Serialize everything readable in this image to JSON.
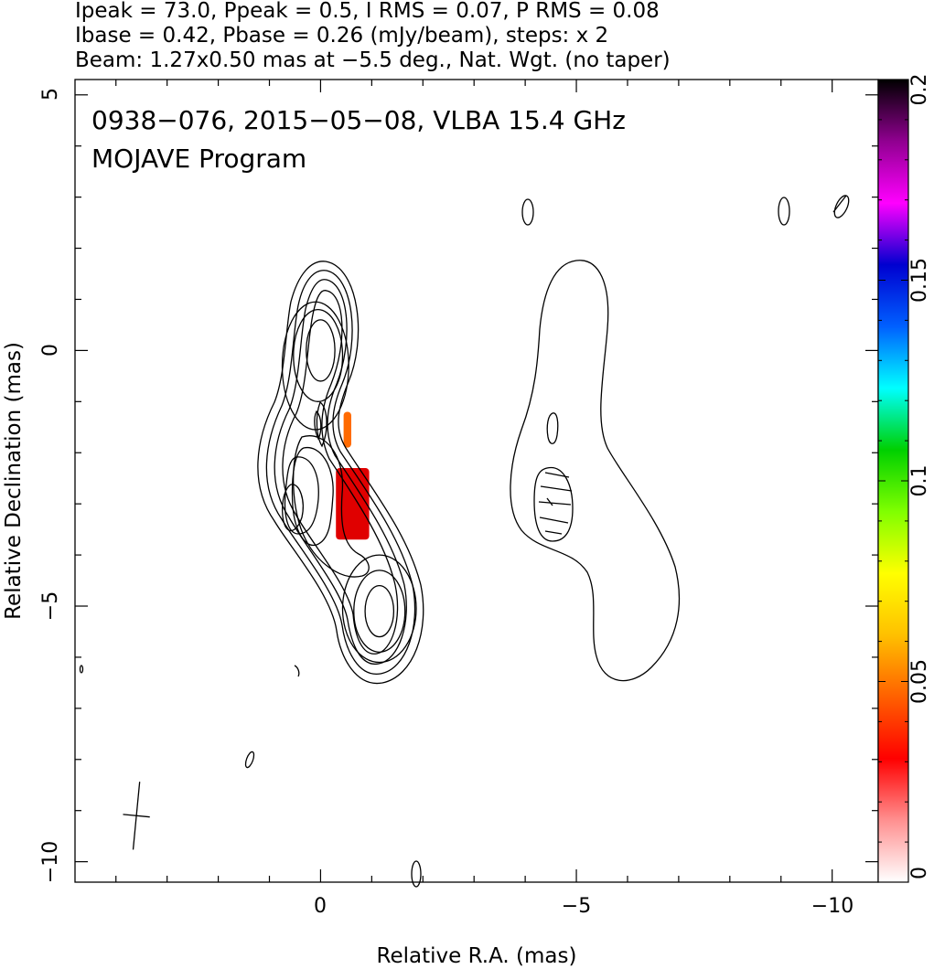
{
  "header": {
    "lines": [
      "Ipeak = 73.0, Ppeak = 0.5, I RMS = 0.07, P RMS = 0.08",
      "Ibase = 0.42, Pbase = 0.26 (mJy/beam), steps: x 2",
      "Beam: 1.27x0.50 mas at −5.5 deg., Nat. Wgt. (no taper)"
    ]
  },
  "chart_data": [
    {
      "type": "contour",
      "title": "0938−076, 2015−05−08, VLBA 15.4 GHz",
      "subtitle": "MOJAVE Program",
      "xlabel": "Relative R.A. (mas)",
      "ylabel": "Relative Declination (mas)",
      "xlim": [
        4.8,
        -10.9
      ],
      "ylim": [
        -10.4,
        5.3
      ],
      "x_ticks": [
        0,
        -5,
        -10
      ],
      "x_tick_labels": [
        "0",
        "−5",
        "−10"
      ],
      "y_ticks": [
        5,
        0,
        -5,
        -10
      ],
      "y_tick_labels": [
        "5",
        "0",
        "−5",
        "−10"
      ],
      "total_intensity_contours": [
        {
          "name": "core-ring-1",
          "center": [
            0,
            0
          ],
          "rx": 0.28,
          "ry": 0.6
        },
        {
          "name": "core-ring-2",
          "center": [
            0.05,
            -0.1
          ],
          "rx": 0.48,
          "ry": 0.9
        },
        {
          "name": "core-ring-3",
          "center": [
            0.1,
            -0.3
          ],
          "rx": 0.65,
          "ry": 1.25
        },
        {
          "name": "knot-ring-1",
          "center": [
            -1.15,
            -5.1
          ],
          "rx": 0.28,
          "ry": 0.5
        },
        {
          "name": "knot-ring-2",
          "center": [
            -1.15,
            -5.1
          ],
          "rx": 0.5,
          "ry": 0.8
        },
        {
          "name": "knot-ring-3",
          "center": [
            -1.15,
            -5.05
          ],
          "rx": 0.72,
          "ry": 1.05
        }
      ],
      "fractional_polarization_scale": {
        "min": 0,
        "max": 0.2,
        "ticks": [
          0,
          0.05,
          0.1,
          0.15,
          0.2
        ],
        "tick_labels": [
          "0",
          "0.05",
          "0.1",
          "0.15",
          "0.2"
        ],
        "colors": [
          "#ffffff",
          "#ff9090",
          "#ff0000",
          "#ff6000",
          "#ffc000",
          "#ffff00",
          "#80ff00",
          "#00d000",
          "#00ffff",
          "#0060ff",
          "#0000d0",
          "#ff00ff",
          "#900090",
          "#000000"
        ]
      },
      "polarization_patches": [
        {
          "name": "pol-patch-main",
          "x_range": [
            -0.3,
            -0.95
          ],
          "y_range": [
            -2.3,
            -3.7
          ],
          "color": "#e00000"
        },
        {
          "name": "pol-patch-upper",
          "x_range": [
            -0.45,
            -0.6
          ],
          "y_range": [
            -1.2,
            -1.9
          ],
          "color": "#ff6a00"
        }
      ],
      "beam": {
        "major_mas": 1.27,
        "minor_mas": 0.5,
        "pa_deg": -5.5,
        "center": [
          3.6,
          -9.1
        ]
      }
    }
  ]
}
